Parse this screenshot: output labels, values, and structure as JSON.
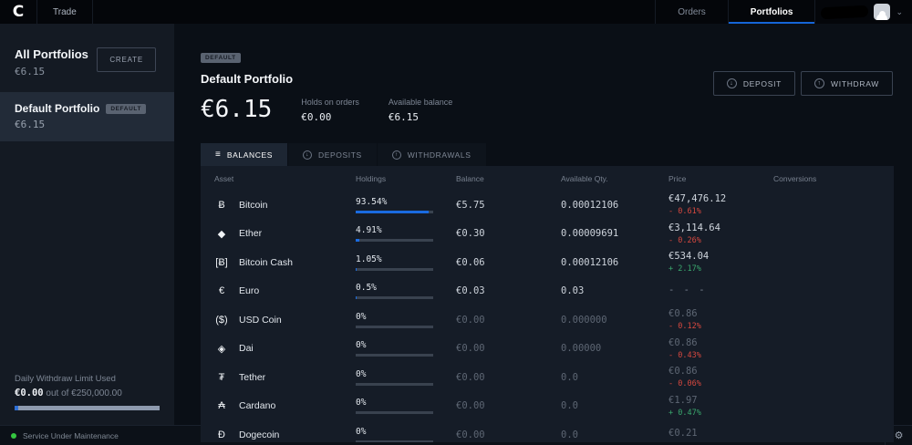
{
  "topbar": {
    "logo_glyph": "C",
    "trade": "Trade",
    "orders": "Orders",
    "portfolios": "Portfolios"
  },
  "icons": {
    "menu": "≡",
    "arrow_down": "↓",
    "arrow_up": "↑",
    "chevron_down": "⌄",
    "gear": "⚙"
  },
  "sidebar": {
    "all_portfolios_label": "All Portfolios",
    "all_portfolios_value": "€6.15",
    "create_label": "CREATE",
    "portfolio": {
      "name": "Default Portfolio",
      "badge": "DEFAULT",
      "value": "€6.15"
    },
    "withdraw_limit": {
      "label": "Daily Withdraw Limit Used",
      "used": "€0.00",
      "suffix": " out of €250,000.00"
    }
  },
  "header": {
    "badge": "DEFAULT",
    "title": "Default Portfolio",
    "balance": "€6.15",
    "holds_label": "Holds on orders",
    "holds_value": "€0.00",
    "available_label": "Available balance",
    "available_value": "€6.15",
    "deposit_label": "DEPOSIT",
    "withdraw_label": "WITHDRAW"
  },
  "tabs": [
    {
      "label": "BALANCES"
    },
    {
      "label": "DEPOSITS"
    },
    {
      "label": "WITHDRAWALS"
    }
  ],
  "table": {
    "columns": [
      "Asset",
      "Holdings",
      "Balance",
      "Available Qty.",
      "Price",
      "Conversions"
    ],
    "rows": [
      {
        "asset": "Bitcoin",
        "symbol": "Ƀ",
        "holdings_pct": "93.54%",
        "holdings": 93.54,
        "balance": "€5.75",
        "available": "0.00012106",
        "price": "€47,476.12",
        "change": "- 0.61%",
        "change_dir": "down",
        "dimmed": false
      },
      {
        "asset": "Ether",
        "symbol": "◆",
        "holdings_pct": "4.91%",
        "holdings": 4.91,
        "balance": "€0.30",
        "available": "0.00009691",
        "price": "€3,114.64",
        "change": "- 0.26%",
        "change_dir": "down",
        "dimmed": false
      },
      {
        "asset": "Bitcoin Cash",
        "symbol": "[Ƀ]",
        "holdings_pct": "1.05%",
        "holdings": 1.05,
        "balance": "€0.06",
        "available": "0.00012106",
        "price": "€534.04",
        "change": "+ 2.17%",
        "change_dir": "up",
        "dimmed": false
      },
      {
        "asset": "Euro",
        "symbol": "€",
        "holdings_pct": "0.5%",
        "holdings": 0.5,
        "balance": "€0.03",
        "available": "0.03",
        "price": "- - -",
        "change": "",
        "change_dir": "",
        "dimmed": false
      },
      {
        "asset": "USD Coin",
        "symbol": "($)",
        "holdings_pct": "0%",
        "holdings": 0,
        "balance": "€0.00",
        "available": "0.000000",
        "price": "€0.86",
        "change": "- 0.12%",
        "change_dir": "down",
        "dimmed": true
      },
      {
        "asset": "Dai",
        "symbol": "◈",
        "holdings_pct": "0%",
        "holdings": 0,
        "balance": "€0.00",
        "available": "0.00000",
        "price": "€0.86",
        "change": "- 0.43%",
        "change_dir": "down",
        "dimmed": true
      },
      {
        "asset": "Tether",
        "symbol": "₮",
        "holdings_pct": "0%",
        "holdings": 0,
        "balance": "€0.00",
        "available": "0.0",
        "price": "€0.86",
        "change": "- 0.06%",
        "change_dir": "down",
        "dimmed": true
      },
      {
        "asset": "Cardano",
        "symbol": "₳",
        "holdings_pct": "0%",
        "holdings": 0,
        "balance": "€0.00",
        "available": "0.0",
        "price": "€1.97",
        "change": "+ 0.47%",
        "change_dir": "up",
        "dimmed": true
      },
      {
        "asset": "Dogecoin",
        "symbol": "Ð",
        "holdings_pct": "0%",
        "holdings": 0,
        "balance": "€0.00",
        "available": "0.0",
        "price": "€0.21",
        "change": "",
        "change_dir": "",
        "dimmed": true
      }
    ]
  },
  "statusbar": {
    "text": "Service Under Maintenance"
  }
}
